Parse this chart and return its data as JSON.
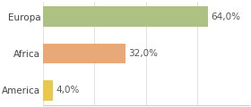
{
  "categories": [
    "America",
    "Africa",
    "Europa"
  ],
  "values": [
    4.0,
    32.0,
    64.0
  ],
  "colors": [
    "#e8c94e",
    "#e8a878",
    "#adc182"
  ],
  "labels": [
    "4,0%",
    "32,0%",
    "64,0%"
  ],
  "background_color": "#ffffff",
  "bar_height": 0.55,
  "xlim": [
    0,
    78
  ],
  "label_fontsize": 7.5,
  "tick_fontsize": 7.5
}
